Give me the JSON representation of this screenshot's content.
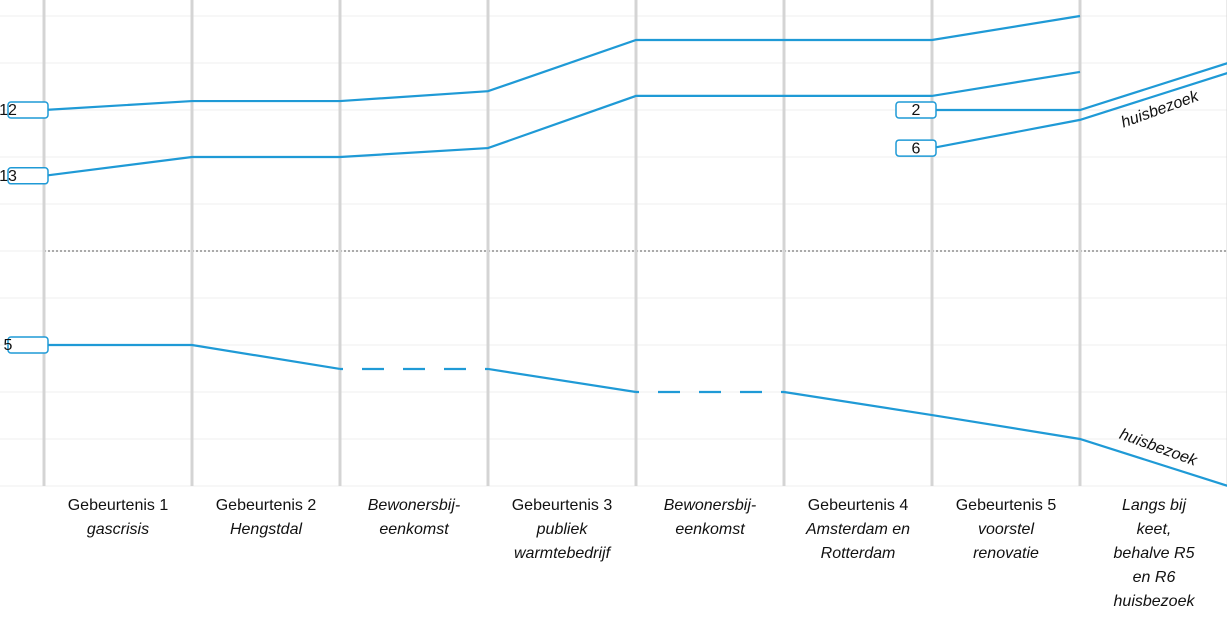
{
  "chart_data": {
    "type": "line",
    "color": "#1f9ad6",
    "x": [
      0,
      1,
      2,
      3,
      4,
      5,
      6,
      7,
      8
    ],
    "xlim": [
      0,
      8
    ],
    "xticks": [
      0,
      1,
      2,
      3,
      4,
      5,
      6,
      7,
      8
    ],
    "ylim": [
      0,
      10
    ],
    "yticks": [
      0,
      1,
      2,
      3,
      4,
      5,
      6,
      7,
      8,
      9,
      10
    ],
    "grid": true,
    "threshold": 5,
    "categories": [
      {
        "title": "Gebeurtenis 1",
        "subtitle": [
          "gascrisis"
        ]
      },
      {
        "title": "Gebeurtenis 2",
        "subtitle": [
          "Hengstdal"
        ]
      },
      {
        "subtitle": [
          "Bewonersbij-",
          "eenkomst"
        ]
      },
      {
        "title": "Gebeurtenis 3",
        "subtitle": [
          "publiek",
          "warmtebedrijf"
        ]
      },
      {
        "subtitle": [
          "Bewonersbij-",
          "eenkomst"
        ]
      },
      {
        "title": "Gebeurtenis 4",
        "subtitle": [
          "Amsterdam en",
          "Rotterdam"
        ]
      },
      {
        "title": "Gebeurtenis 5",
        "subtitle": [
          "voorstel",
          "renovatie"
        ]
      },
      {
        "subtitle": [
          "Langs bij",
          "keet,",
          "behalve R5",
          "en R6",
          "huisbezoek"
        ]
      }
    ],
    "series": [
      {
        "name": "12",
        "values": [
          8.0,
          8.19,
          8.19,
          8.4,
          9.49,
          9.49,
          9.49,
          10.0,
          null
        ]
      },
      {
        "name": "13",
        "values": [
          6.6,
          7.0,
          7.0,
          7.19,
          8.3,
          8.3,
          8.3,
          8.81,
          null
        ]
      },
      {
        "name": "5",
        "values": [
          3.0,
          3.0,
          2.49,
          2.49,
          2.0,
          2.0,
          1.51,
          1.0,
          0
        ],
        "dashed_segments": [
          2,
          4
        ]
      },
      {
        "name": "2",
        "values": [
          null,
          null,
          null,
          null,
          null,
          null,
          8.0,
          8.0,
          9.0
        ]
      },
      {
        "name": "6",
        "values": [
          null,
          null,
          null,
          null,
          null,
          null,
          7.19,
          7.79,
          8.79
        ]
      }
    ],
    "annotations": [
      "huisbezoek",
      "huisbezoek"
    ]
  }
}
